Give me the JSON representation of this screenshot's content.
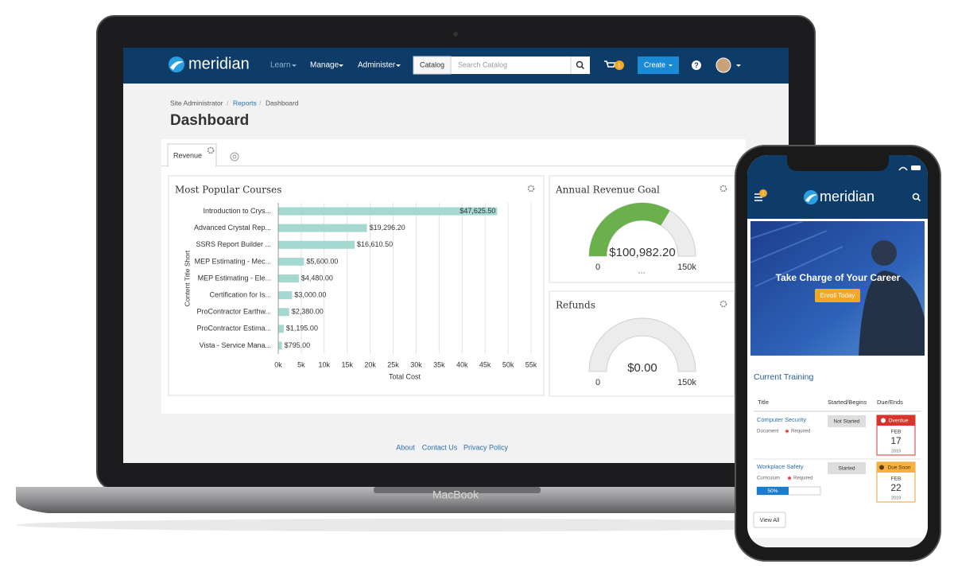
{
  "laptop": {
    "brand": "MacBook"
  },
  "nav": {
    "logo": "meridian",
    "items": [
      "Learn",
      "Manage",
      "Administer"
    ],
    "search_scope": "Catalog",
    "search_placeholder": "Search Catalog",
    "cart_count": "1",
    "create": "Create",
    "help": "?"
  },
  "breadcrumb": {
    "items": [
      "Site Administrator",
      "Reports",
      "Dashboard"
    ],
    "separator": "/"
  },
  "page_title": "Dashboard",
  "tabs": [
    "Revenue"
  ],
  "chart_data": [
    {
      "type": "bar",
      "orientation": "horizontal",
      "title": "Most Popular Courses",
      "x_label": "Total Cost",
      "y_label": "Content Title Short",
      "categories": [
        "Introduction to Crys...",
        "Advanced Crystal Rep...",
        "SSRS Report Builder ...",
        "MEP Estimating - Mec...",
        "MEP Estimating - Ele...",
        "Certification for Is...",
        "ProContractor Earthw...",
        "ProContractor Estima...",
        "Vista - Service Mana..."
      ],
      "values": [
        47625.5,
        19296.2,
        16610.5,
        5600,
        4480,
        3000,
        2380,
        1195,
        795
      ],
      "value_labels": [
        "$47,625.50",
        "$19,296.20",
        "$16,610.50",
        "$5,600.00",
        "$4,480.00",
        "$3,000.00",
        "$2,380.00",
        "$1,195.00",
        "$795.00"
      ],
      "color": "#a3d9d0",
      "xlim": [
        0,
        55000
      ],
      "xticks": [
        {
          "value": 0,
          "label": "0k"
        },
        {
          "value": 5000,
          "label": "5k"
        },
        {
          "value": 10000,
          "label": "10k"
        },
        {
          "value": 15000,
          "label": "15k"
        },
        {
          "value": 20000,
          "label": "20k"
        },
        {
          "value": 25000,
          "label": "25k"
        },
        {
          "value": 30000,
          "label": "30k"
        },
        {
          "value": 35000,
          "label": "35k"
        },
        {
          "value": 40000,
          "label": "40k"
        },
        {
          "value": 45000,
          "label": "45k"
        },
        {
          "value": 50000,
          "label": "50k"
        },
        {
          "value": 55000,
          "label": "55k"
        }
      ],
      "grid": true
    },
    {
      "type": "gauge",
      "title": "Annual Revenue Goal",
      "value": 100982.2,
      "value_label": "$100,982.20",
      "ylim": [
        0,
        150000
      ],
      "yticks": [
        0,
        {
          "value": 150000,
          "label": "150k"
        }
      ],
      "color": "#6ab04c"
    },
    {
      "type": "gauge",
      "title": "Refunds",
      "value": 0,
      "value_label": "$0.00",
      "ylim": [
        0,
        150000
      ],
      "yticks": [
        0,
        {
          "value": 150000,
          "label": "150k"
        }
      ],
      "color": "#6ab04c"
    }
  ],
  "footer": [
    "About",
    "Contact Us",
    "Privacy Policy"
  ],
  "mobile": {
    "logo": "meridian",
    "menu_badge": "1",
    "banner": {
      "headline": "Take Charge of Your Career",
      "button": "Enroll Today"
    },
    "section_title": "Current Training",
    "columns": [
      "Title",
      "Started/Begins",
      "Due/Ends"
    ],
    "rows": [
      {
        "title": "Computer Security",
        "type": "Document",
        "required": "Required",
        "status": "Not Started",
        "due_status": "Overdue",
        "month": "FEB",
        "day": "17",
        "year": "2019"
      },
      {
        "title": "Workplace Safety",
        "type": "Curriculum",
        "required": "Required",
        "progress": {
          "value": 50,
          "label": "50%"
        },
        "status": "Started",
        "due_status": "Due Soon",
        "month": "FEB",
        "day": "22",
        "year": "2019"
      }
    ],
    "view_all": "View All"
  }
}
